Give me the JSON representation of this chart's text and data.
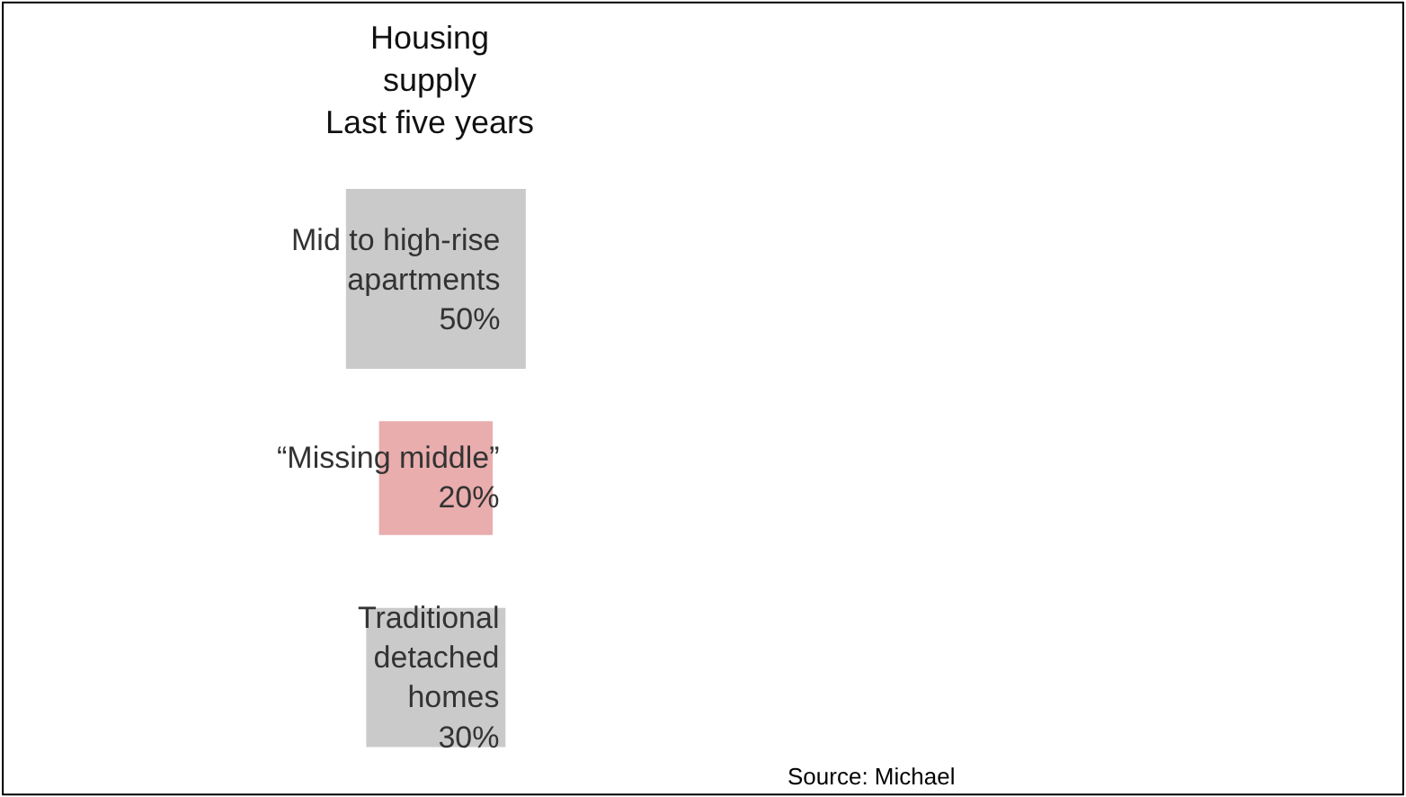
{
  "chart_data": {
    "type": "other",
    "title": "Housing\nsupply\nLast five years",
    "categories": [
      "Mid to high-rise\napartments",
      "“Missing middle”",
      "Traditional\ndetached\nhomes"
    ],
    "values": [
      50,
      20,
      30
    ],
    "value_labels": [
      "50%",
      "20%",
      "30%"
    ],
    "colors": [
      "#b3b3b3",
      "#e08a8a",
      "#b3b3b3"
    ],
    "annotations": [
      "Source: Michael"
    ],
    "legend": false
  }
}
